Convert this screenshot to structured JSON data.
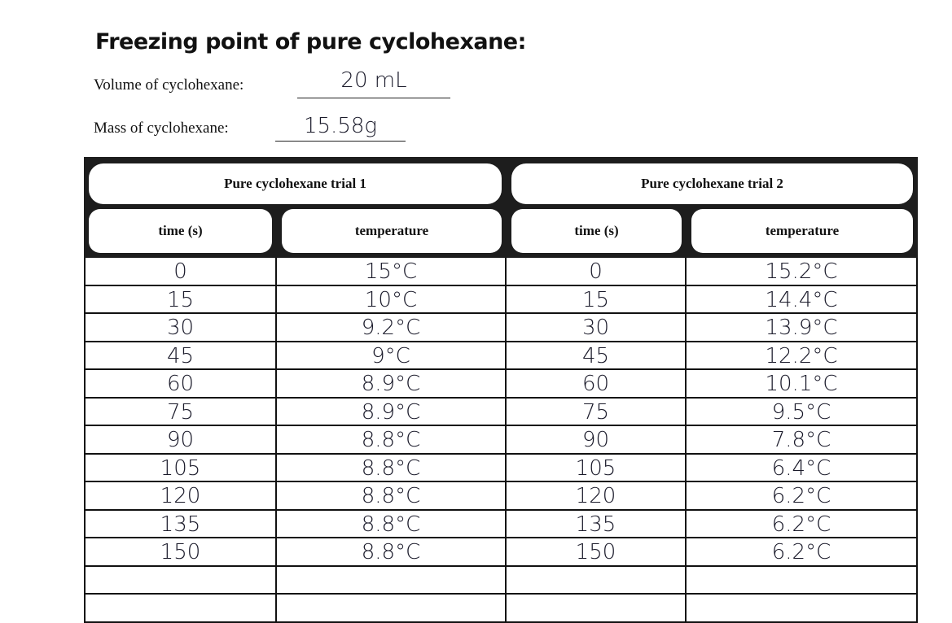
{
  "header": {
    "title": "Freezing point of pure cyclohexane:"
  },
  "fields": [
    {
      "label": "Volume of cyclohexane:",
      "value": "20 mL"
    },
    {
      "label": "Mass of cyclohexane:",
      "value": "15.58g"
    }
  ],
  "table": {
    "groups": [
      "Pure cyclohexane trial 1",
      "Pure cyclohexane trial 2"
    ],
    "columns": [
      "time (s)",
      "temperature",
      "time (s)",
      "temperature"
    ],
    "rows": [
      [
        "0",
        "15°C",
        "0",
        "15.2°C"
      ],
      [
        "15",
        "10°C",
        "15",
        "14.4°C"
      ],
      [
        "30",
        "9.2°C",
        "30",
        "13.9°C"
      ],
      [
        "45",
        "9°C",
        "45",
        "12.2°C"
      ],
      [
        "60",
        "8.9°C",
        "60",
        "10.1°C"
      ],
      [
        "75",
        "8.9°C",
        "75",
        "9.5°C"
      ],
      [
        "90",
        "8.8°C",
        "90",
        "7.8°C"
      ],
      [
        "105",
        "8.8°C",
        "105",
        "6.4°C"
      ],
      [
        "120",
        "8.8°C",
        "120",
        "6.2°C"
      ],
      [
        "135",
        "8.8°C",
        "135",
        "6.2°C"
      ],
      [
        "150",
        "8.8°C",
        "150",
        "6.2°C"
      ]
    ]
  }
}
